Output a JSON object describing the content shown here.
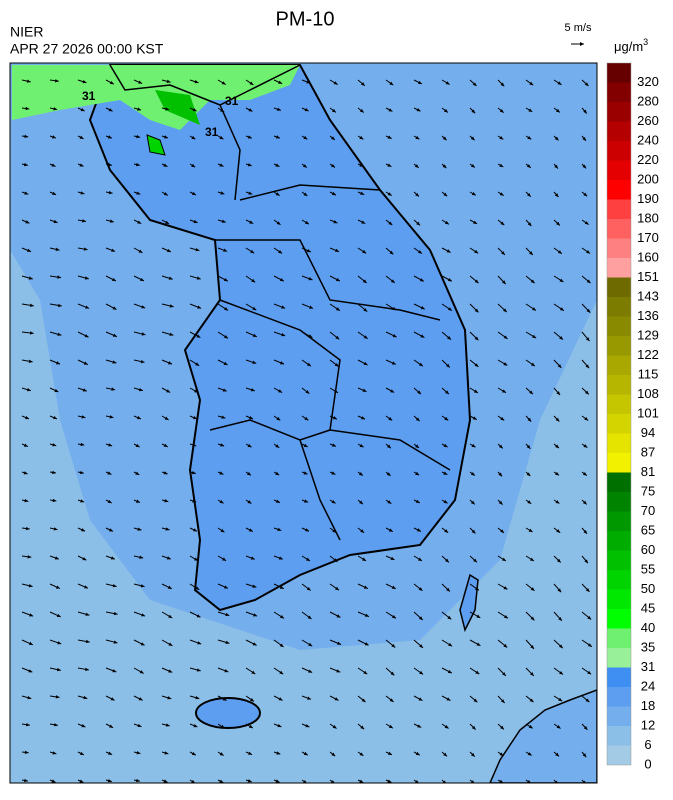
{
  "header": {
    "title": "PM-10",
    "agency": "NIER",
    "datetime": "APR 27 2026 00:00 KST"
  },
  "wind_scale": {
    "label": "5 m/s"
  },
  "legend": {
    "unit": "μg/m",
    "unit_power": "3",
    "levels": [
      0,
      6,
      12,
      18,
      24,
      31,
      35,
      40,
      45,
      50,
      55,
      60,
      65,
      70,
      75,
      81,
      87,
      94,
      101,
      108,
      115,
      122,
      129,
      136,
      143,
      151,
      160,
      170,
      180,
      190,
      200,
      220,
      240,
      260,
      280,
      320
    ],
    "colors": [
      "#a3cbe6",
      "#8cbfe8",
      "#74aeec",
      "#5d9ef0",
      "#3f8ff2",
      "#98f098",
      "#70f070",
      "#00ff00",
      "#00e800",
      "#00d400",
      "#00c000",
      "#00ac00",
      "#009800",
      "#008400",
      "#007000",
      "#f2f200",
      "#e4e400",
      "#d4d400",
      "#c6c600",
      "#b6b600",
      "#a8a800",
      "#989800",
      "#8a8a00",
      "#7c7c00",
      "#6e6a00",
      "#ffa0a0",
      "#ff8080",
      "#ff6060",
      "#ff4040",
      "#ff0000",
      "#e40000",
      "#cc0000",
      "#b40000",
      "#9a0000",
      "#820000",
      "#660000"
    ]
  },
  "map": {
    "contour_labels": [
      "31",
      "31",
      "31"
    ]
  }
}
